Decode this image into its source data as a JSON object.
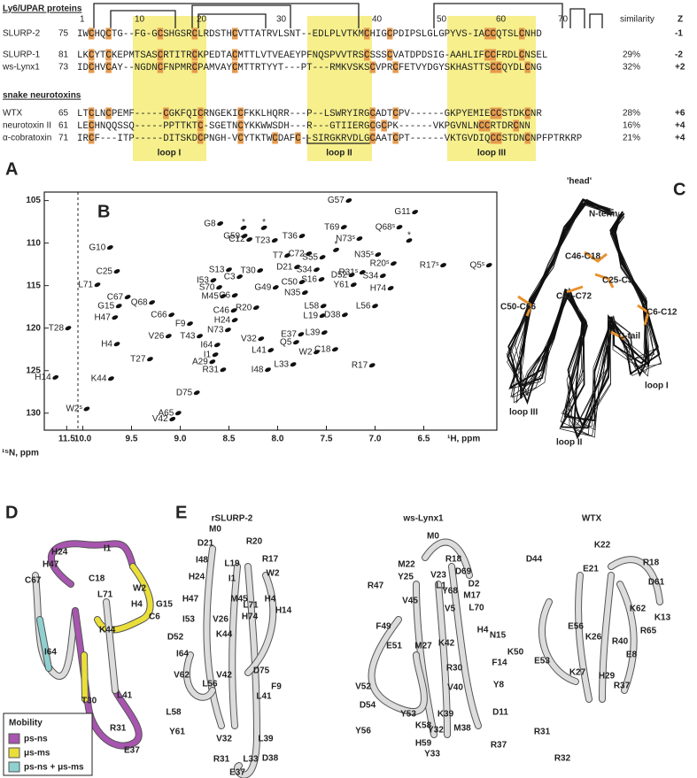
{
  "alignment": {
    "sections": [
      "Ly6/UPAR proteins",
      "snake neurotoxins"
    ],
    "positions": [
      1,
      10,
      20,
      30,
      40,
      50,
      60,
      70
    ],
    "col_headers": [
      "similarity",
      "Z"
    ],
    "rows": [
      {
        "name": "SLURP-2",
        "start": 75,
        "sequence": "IWCHQCTG--FG-GCSHGSRCLRDSTHCVTTATRVLSNT--EDLPLVTKMCHIGCPDIPSLGLGPYVS-IACCQTSLCNHD",
        "z": "-1"
      },
      {
        "name": "SLURP-1",
        "start": 81,
        "sequence": "LKCYTCKEPMTSASCRTITRCKPEDTACMTTLVTVEAEYPFNQSPVVTRSCSSSCVATDPDSIG-AAHLIFCCFRDLCNSEL",
        "similarity": "29%",
        "z": "-2"
      },
      {
        "name": "ws-Lynx1",
        "start": 73,
        "sequence": "IDCHVCAY--NGDNCFNPMRCPAMVAYCMTTRTYYT---PT---RMKVSKSCVPRCFETVYDGYSKHASTTSCCQYDLCNG",
        "similarity": "32%",
        "z": "+2"
      },
      {
        "name": "WTX",
        "start": 65,
        "sequence": "LTCLNCPEMF-----CGKFQICRNGEKICFKKLHQRR---P--LSWRYIRGCADTCPV------GKPYEMIECCSTDKCNR",
        "similarity": "28%",
        "z": "+6"
      },
      {
        "name": "neurotoxin II",
        "start": 61,
        "sequence": "LECHNQQSSQ-----PPTTKTC-SGETNCYKKWWSDH---R---GTIIERGCGCPK------VKPGVNLNCCRTDRCNN",
        "similarity": "16%",
        "z": "+4"
      },
      {
        "name": "α-cobratoxin",
        "start": 71,
        "sequence": "IRCF---ITP-----DITSKDCPNGH-VCYTKTWCDAFC--SIRGKRVDLGCAATCPT------VKTGVDIQCCSTDNCNPFPTRKRP",
        "similarity": "21%",
        "z": "+4"
      }
    ],
    "loops": [
      "loop I",
      "loop II",
      "loop III"
    ]
  },
  "panel_labels": [
    "A",
    "B",
    "C",
    "D",
    "E"
  ],
  "chart_data": {
    "type": "scatter",
    "x_label": "¹H, ppm",
    "y_label": "¹⁵N, ppm",
    "xlim": [
      11.8,
      5.75
    ],
    "x_break": [
      11.35,
      10.05
    ],
    "ylim": [
      104,
      132
    ],
    "xticks": [
      11.5,
      {
        "value": 10,
        "label": "10.0"
      },
      9.5,
      {
        "value": 9,
        "label": "9.0"
      },
      8.5,
      {
        "value": 8,
        "label": "8.0"
      },
      7.5,
      {
        "value": 7,
        "label": "7.0"
      },
      6.5
    ],
    "yticks": [
      105,
      110,
      115,
      120,
      125,
      130
    ],
    "peaks": [
      {
        "label": "G57",
        "x": 7.27,
        "y": 105.0
      },
      {
        "label": "G11",
        "x": 6.59,
        "y": 106.35
      },
      {
        "label": "G59",
        "x": 8.34,
        "y": 109.17
      },
      {
        "label": "G8",
        "x": 8.59,
        "y": 107.71
      },
      {
        "label": "T69",
        "x": 7.32,
        "y": 108.13
      },
      {
        "label": "Q68ˢ",
        "x": 6.75,
        "y": 108.13
      },
      {
        "label": "C12",
        "x": 8.29,
        "y": 109.58
      },
      {
        "label": "T23",
        "x": 8.03,
        "y": 109.69
      },
      {
        "label": "T36",
        "x": 7.75,
        "y": 109.17
      },
      {
        "label": "N73ˢ",
        "x": 7.16,
        "y": 109.48
      },
      {
        "label": "G10",
        "x": 9.72,
        "y": 110.52
      },
      {
        "label": "T7",
        "x": 7.9,
        "y": 111.46
      },
      {
        "label": "C72",
        "x": 7.68,
        "y": 111.25
      },
      {
        "label": "D21",
        "x": 7.8,
        "y": 112.81
      },
      {
        "label": "S55",
        "x": 7.54,
        "y": 111.67
      },
      {
        "label": "R20ˢ",
        "x": 6.81,
        "y": 112.4
      },
      {
        "label": "R17ˢ",
        "x": 6.3,
        "y": 112.6
      },
      {
        "label": "Q5ˢ",
        "x": 5.83,
        "y": 112.6
      },
      {
        "label": "N35ˢ",
        "x": 6.97,
        "y": 111.35
      },
      {
        "label": "R31ˢ",
        "x": 7.13,
        "y": 113.44
      },
      {
        "label": "S34",
        "x": 7.6,
        "y": 113.13
      },
      {
        "label": "S34",
        "x": 6.92,
        "y": 113.85
      },
      {
        "label": "C25",
        "x": 9.65,
        "y": 113.33
      },
      {
        "label": "S13",
        "x": 8.5,
        "y": 113.13
      },
      {
        "label": "T30",
        "x": 8.18,
        "y": 113.23
      },
      {
        "label": "C3",
        "x": 8.39,
        "y": 113.96
      },
      {
        "label": "S16",
        "x": 7.55,
        "y": 114.27
      },
      {
        "label": "C50",
        "x": 7.75,
        "y": 114.58
      },
      {
        "label": "Y61",
        "x": 7.22,
        "y": 114.9
      },
      {
        "label": "D52",
        "x": 7.24,
        "y": 113.75
      },
      {
        "label": "G49",
        "x": 8.02,
        "y": 115.21
      },
      {
        "label": "S70",
        "x": 8.6,
        "y": 115.21
      },
      {
        "label": "M45",
        "x": 8.56,
        "y": 116.25
      },
      {
        "label": "C6",
        "x": 8.44,
        "y": 116.15
      },
      {
        "label": "N35",
        "x": 7.72,
        "y": 115.83
      },
      {
        "label": "H74",
        "x": 6.84,
        "y": 115.31
      },
      {
        "label": "L71",
        "x": 9.85,
        "y": 114.9
      },
      {
        "label": "C67",
        "x": 9.54,
        "y": 116.35
      },
      {
        "label": "Q68",
        "x": 9.29,
        "y": 116.98
      },
      {
        "label": "I53",
        "x": 8.66,
        "y": 114.38
      },
      {
        "label": "G15",
        "x": 9.63,
        "y": 117.4
      },
      {
        "label": "C66",
        "x": 9.09,
        "y": 118.44
      },
      {
        "label": "C46",
        "x": 8.45,
        "y": 117.92
      },
      {
        "label": "R20",
        "x": 8.22,
        "y": 117.6
      },
      {
        "label": "L58",
        "x": 7.53,
        "y": 117.4
      },
      {
        "label": "L19",
        "x": 7.54,
        "y": 118.54
      },
      {
        "label": "D38",
        "x": 7.31,
        "y": 118.44
      },
      {
        "label": "L56",
        "x": 7.0,
        "y": 117.4
      },
      {
        "label": "H47",
        "x": 9.67,
        "y": 118.75
      },
      {
        "label": "F9",
        "x": 8.9,
        "y": 119.48
      },
      {
        "label": "H24",
        "x": 8.44,
        "y": 119.06
      },
      {
        "label": "N73",
        "x": 8.51,
        "y": 120.21
      },
      {
        "label": "E37",
        "x": 7.76,
        "y": 120.73
      },
      {
        "label": "L39",
        "x": 7.52,
        "y": 120.52
      },
      {
        "label": "T28",
        "x": 11.48,
        "y": 120.0
      },
      {
        "label": "V26",
        "x": 9.12,
        "y": 120.94
      },
      {
        "label": "T43",
        "x": 8.8,
        "y": 120.94
      },
      {
        "label": "V32",
        "x": 8.17,
        "y": 121.25
      },
      {
        "label": "Q5",
        "x": 7.81,
        "y": 121.67
      },
      {
        "label": "H4",
        "x": 9.65,
        "y": 121.88
      },
      {
        "label": "I64",
        "x": 8.62,
        "y": 121.98
      },
      {
        "label": "C18",
        "x": 7.41,
        "y": 122.5
      },
      {
        "label": "W2",
        "x": 7.6,
        "y": 122.81
      },
      {
        "label": "I1",
        "x": 8.64,
        "y": 123.13
      },
      {
        "label": "L41",
        "x": 8.07,
        "y": 122.6
      },
      {
        "label": "T27",
        "x": 9.31,
        "y": 123.65
      },
      {
        "label": "A29",
        "x": 8.67,
        "y": 123.96
      },
      {
        "label": "R31",
        "x": 8.56,
        "y": 124.9
      },
      {
        "label": "I48",
        "x": 8.1,
        "y": 124.9
      },
      {
        "label": "L33",
        "x": 7.84,
        "y": 124.27
      },
      {
        "label": "R17",
        "x": 7.03,
        "y": 124.38
      },
      {
        "label": "K44",
        "x": 9.71,
        "y": 125.94
      },
      {
        "label": "D75",
        "x": 8.83,
        "y": 127.6
      },
      {
        "label": "A65",
        "x": 9.02,
        "y": 130.0
      },
      {
        "label": "V42",
        "x": 9.08,
        "y": 130.7
      },
      {
        "label": "H14",
        "x": 11.65,
        "y": 125.8
      },
      {
        "label": "W2ˢ",
        "x": 9.96,
        "y": 129.5
      },
      {
        "label": "*",
        "x": 8.35,
        "y": 108.2
      },
      {
        "label": "*",
        "x": 8.14,
        "y": 108.2
      },
      {
        "label": "*",
        "x": 7.4,
        "y": 110.8
      },
      {
        "label": "*",
        "x": 6.65,
        "y": 109.7
      }
    ]
  },
  "panel_c": {
    "labels": [
      "'head'",
      "N-term",
      "C46-C18",
      "C25-C3",
      "C67-C72",
      "C50-C66",
      "C6-C12",
      "C-tail",
      "loop I",
      "loop III",
      "loop II"
    ]
  },
  "panel_d": {
    "labels": [
      "H24",
      "I1",
      "C18",
      "H47",
      "C67",
      "W2",
      "L71",
      "G15",
      "H4",
      "C6",
      "K44",
      "I64",
      "T30",
      "L41",
      "R31",
      "E37"
    ],
    "legend_title": "Mobility",
    "legend": [
      "ps-ns",
      "μs-ms",
      "ps-ns + μs-ms"
    ]
  },
  "panel_e": [
    {
      "title": "rSLURP-2",
      "labels": [
        "M0",
        "D21",
        "R20",
        "I48",
        "L19",
        "R17",
        "H24",
        "I1",
        "W2",
        "H47",
        "M45",
        "L71",
        "I53",
        "V26",
        "H74",
        "H4",
        "H14",
        "D52",
        "K44",
        "I64",
        "V62",
        "V42",
        "D75",
        "L56",
        "F9",
        "L58",
        "L41",
        "Y61",
        "V32",
        "L39",
        "R31",
        "L33",
        "D38",
        "E37"
      ]
    },
    {
      "title": "ws-Lynx1",
      "labels": [
        "M0",
        "R18",
        "M22",
        "V23",
        "D69",
        "R47",
        "Y25",
        "L1",
        "Y68",
        "D2",
        "M17",
        "V45",
        "L70",
        "V5",
        "F49",
        "H4",
        "N15",
        "E51",
        "M27",
        "K42",
        "F14",
        "V52",
        "R30",
        "D54",
        "V40",
        "Y8",
        "Y53",
        "K58",
        "K39",
        "D11",
        "Y56",
        "H59",
        "Y32",
        "M38",
        "Y33",
        "R37"
      ]
    },
    {
      "title": "WTX",
      "labels": [
        "K22",
        "D44",
        "E21",
        "R18",
        "D61",
        "K62",
        "K13",
        "E56",
        "K26",
        "R40",
        "R65",
        "K50",
        "E53",
        "K27",
        "E8",
        "H29",
        "R37",
        "R31",
        "R32"
      ]
    }
  ]
}
